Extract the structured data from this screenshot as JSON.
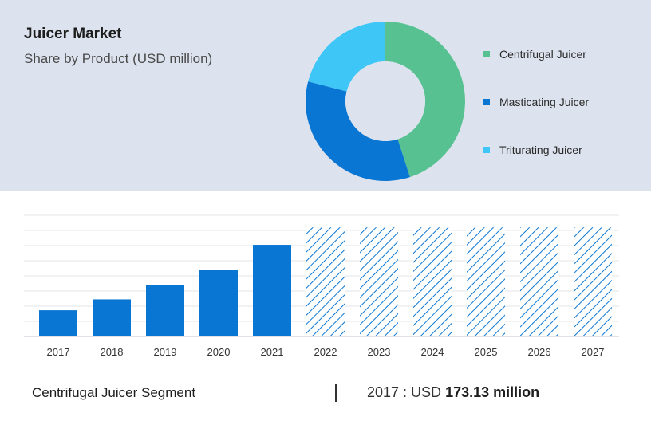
{
  "header": {
    "title": "Juicer Market",
    "subtitle": "Share by Product (USD million)"
  },
  "legend": [
    {
      "label": "Centrifugal Juicer",
      "color": "#57c191"
    },
    {
      "label": "Masticating Juicer",
      "color": "#0a76d4"
    },
    {
      "label": "Triturating Juicer",
      "color": "#3ec6f6"
    }
  ],
  "footer": {
    "segment_label": "Centrifugal Juicer Segment",
    "value_prefix": "2017 : USD",
    "value_bold": "173.13 million"
  },
  "chart_data": [
    {
      "type": "pie",
      "donut": true,
      "categories": [
        "Centrifugal Juicer",
        "Masticating Juicer",
        "Triturating Juicer"
      ],
      "values": [
        45,
        34,
        21
      ],
      "colors": [
        "#57c191",
        "#0a76d4",
        "#3ec6f6"
      ]
    },
    {
      "type": "bar",
      "categories": [
        "2017",
        "2018",
        "2019",
        "2020",
        "2021",
        "2022",
        "2023",
        "2024",
        "2025",
        "2026",
        "2027"
      ],
      "values": [
        173.13,
        245,
        340,
        440,
        605,
        720,
        720,
        720,
        720,
        720,
        720
      ],
      "forecast_from": "2022",
      "ylim": [
        0,
        800
      ],
      "grid": true,
      "color": "#0a76d4"
    }
  ]
}
